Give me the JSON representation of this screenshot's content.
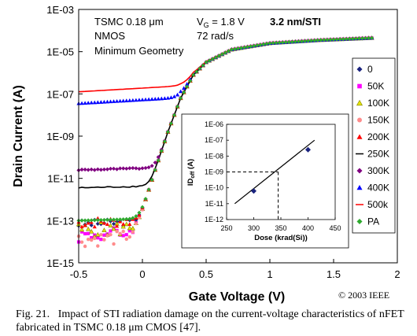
{
  "figure": {
    "caption_label": "Fig. 21.",
    "caption_text": "Impact of STI radiation damage on the current-voltage characteristics of nFET fabricated in TSMC 0.18 μm CMOS [47].",
    "copyright": "© 2003 IEEE"
  },
  "chart_data": [
    {
      "type": "line",
      "title": "",
      "xlabel": "Gate Voltage (V)",
      "ylabel": "Drain Current (A)",
      "xlim": [
        -0.5,
        2
      ],
      "ylim_exp": [
        -15,
        -3
      ],
      "x_ticks": [
        "-0.5",
        "0",
        "0.5",
        "1",
        "1.5",
        "2"
      ],
      "x_tick_values": [
        -0.5,
        0,
        0.5,
        1,
        1.5,
        2
      ],
      "y_ticks": [
        "1E-15",
        "1E-13",
        "1E-11",
        "1E-09",
        "1E-07",
        "1E-05",
        "1E-03"
      ],
      "y_tick_exp": [
        -15,
        -13,
        -11,
        -9,
        -7,
        -5,
        -3
      ],
      "y_scale": "log",
      "annotations": [
        "TSMC 0.18 μm",
        "NMOS",
        "Minimum Geometry",
        "V",
        "G",
        " = 1.8 V",
        "72 rad/s",
        "3.2 nm/STI"
      ],
      "legend_position": "right",
      "series": [
        {
          "name": "0",
          "color": "#1a237e",
          "marker": "diamond",
          "leak_exp": -13.15,
          "noise": 0.18
        },
        {
          "name": "50K",
          "color": "#ff00ff",
          "marker": "square",
          "leak_exp": -13.7,
          "noise": 0.35
        },
        {
          "name": "100K",
          "color": "#e6e600",
          "marker": "triangle",
          "leak_exp": -13.45,
          "noise": 0.35
        },
        {
          "name": "150K",
          "color": "#ff8c8c",
          "marker": "circle",
          "leak_exp": -13.9,
          "noise": 0.35
        },
        {
          "name": "200K",
          "color": "#ff0000",
          "marker": "triangle",
          "leak_exp": -13.1,
          "noise": 0.25
        },
        {
          "name": "250K",
          "color": "#000000",
          "marker": "line",
          "leak_exp": -11.45,
          "noise": 0.03
        },
        {
          "name": "300K",
          "color": "#800080",
          "marker": "diamond",
          "leak_exp": -10.6,
          "noise": 0.03
        },
        {
          "name": "400K",
          "color": "#0000ff",
          "marker": "triangle",
          "leak_exp": -7.45,
          "noise": 0.0
        },
        {
          "name": "500k",
          "color": "#ff0000",
          "marker": "line",
          "leak_exp": -6.9,
          "noise": 0.0
        },
        {
          "name": "PA",
          "color": "#2eaa2e",
          "marker": "diamond",
          "leak_exp": -13.0,
          "noise": 0.0
        }
      ]
    },
    {
      "type": "scatter",
      "title": "",
      "xlabel": "Dose (krad(Si))",
      "ylabel": "ID",
      "ylabel_sub": "off",
      "ylabel_unit": " (A)",
      "xlim": [
        250,
        450
      ],
      "x_ticks": [
        "250",
        "300",
        "350",
        "400",
        "450"
      ],
      "x_tick_values": [
        250,
        300,
        350,
        400,
        450
      ],
      "ylim_exp": [
        -12,
        -6
      ],
      "y_ticks": [
        "1E-12",
        "1E-11",
        "1E-10",
        "1E-09",
        "1E-08",
        "1E-07",
        "1E-06"
      ],
      "y_tick_exp": [
        -12,
        -11,
        -10,
        -9,
        -8,
        -7,
        -6
      ],
      "y_scale": "log",
      "points": [
        {
          "x": 300,
          "y_exp": -10.2
        },
        {
          "x": 400,
          "y_exp": -7.6
        }
      ],
      "fit_line": {
        "x": [
          265,
          412
        ],
        "y_exp": [
          -11.0,
          -7.0
        ]
      },
      "threshold": {
        "x": 345,
        "y_exp": -9.0
      }
    }
  ]
}
